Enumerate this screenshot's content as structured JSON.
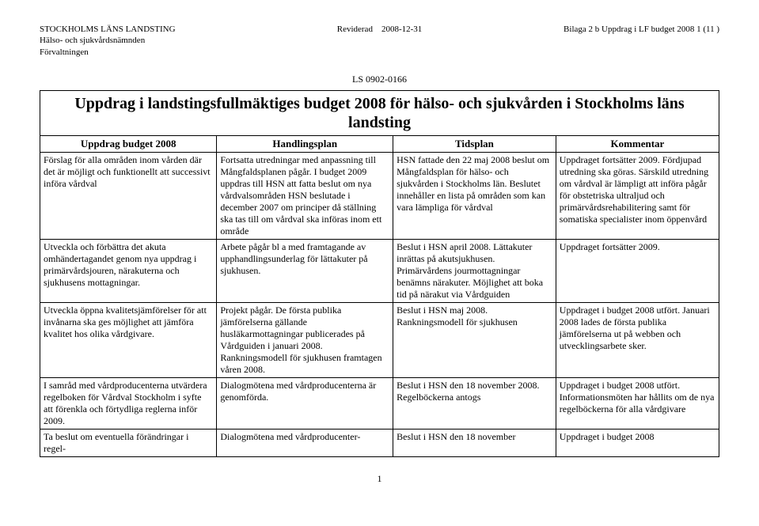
{
  "header": {
    "org_line1": "STOCKHOLMS LÄNS LANDSTING",
    "org_line2": "Hälso- och sjukvårdsnämnden",
    "org_line3": "Förvaltningen",
    "revised": "Reviderad",
    "rev_date": "2008-12-31",
    "bilaga": "Bilaga 2 b Uppdrag i LF budget 2008  1 (11 )",
    "case_number": "LS 0902-0166"
  },
  "title": "Uppdrag i landstingsfullmäktiges budget 2008 för hälso- och sjukvården i Stockholms läns landsting",
  "columns": [
    "Uppdrag budget 2008",
    "Handlingsplan",
    "Tidsplan",
    "Kommentar"
  ],
  "rows": [
    {
      "c1": "Förslag för alla områden inom vården där det är möjligt och funktionellt att successivt införa vårdval",
      "c2": "Fortsatta utredningar med anpassning till Mångfaldsplanen pågår. I budget 2009 uppdras till HSN att fatta beslut om nya vårdvalsområden HSN beslutade i december 2007 om principer då ställning ska tas till om vårdval ska införas inom ett område",
      "c3": "HSN fattade den 22 maj 2008 beslut om Mångfaldsplan för hälso- och sjukvården i Stockholms län. Beslutet innehåller en lista på områden som kan vara lämpliga för vårdval",
      "c4": "Uppdraget fortsätter 2009.  Fördjupad utredning ska göras. Särskild utredning om vårdval är lämpligt att införa pågår för obstetriska ultraljud och primärvårdsrehabilitering samt för somatiska specialister inom öppenvård"
    },
    {
      "c1": "Utveckla och förbättra det akuta omhändertagandet genom nya uppdrag i primärvårdsjouren, närakuterna och sjukhusens mottagningar.",
      "c2": "Arbete pågår bl a med framtagande av upphandlingsunderlag för lättakuter på sjukhusen.",
      "c3": "Beslut i HSN april 2008. Lättakuter inrättas på akutsjukhusen. Primärvårdens jourmottagningar benämns närakuter. Möjlighet att boka tid på närakut via Vårdguiden",
      "c4": "Uppdraget fortsätter 2009."
    },
    {
      "c1": "Utveckla öppna kvalitetsjämförelser för att invånarna ska ges möjlighet att jämföra kvalitet hos olika vårdgivare.",
      "c2": "Projekt pågår. De första publika jämförelserna gällande husläkarmottagningar publicerades på Vårdguiden i januari 2008. Rankningsmodell för sjukhusen framtagen våren 2008.",
      "c3": "Beslut i HSN maj 2008.  Rankningsmodell för sjukhusen",
      "c4": "Uppdraget i budget 2008 utfört.  Januari 2008 lades de första publika jämförelserna ut på webben och utvecklingsarbete sker."
    },
    {
      "c1": "I samråd med vårdproducenterna utvärdera regelboken för Vårdval Stockholm i syfte att förenkla och förtydliga reglerna inför 2009.",
      "c2": "Dialogmötena med vårdproducenterna är genomförda.",
      "c3": "Beslut i HSN den 18 november 2008. Regelböckerna antogs",
      "c4": "Uppdraget i budget 2008 utfört.  Informationsmöten har hållits om de nya regelböckerna för alla vårdgivare"
    },
    {
      "c1": "Ta beslut om eventuella förändringar i regel-",
      "c2": "Dialogmötena med vårdproducenter-",
      "c3": "Beslut i HSN den 18 november",
      "c4": "Uppdraget i budget 2008"
    }
  ],
  "page_number": "1"
}
